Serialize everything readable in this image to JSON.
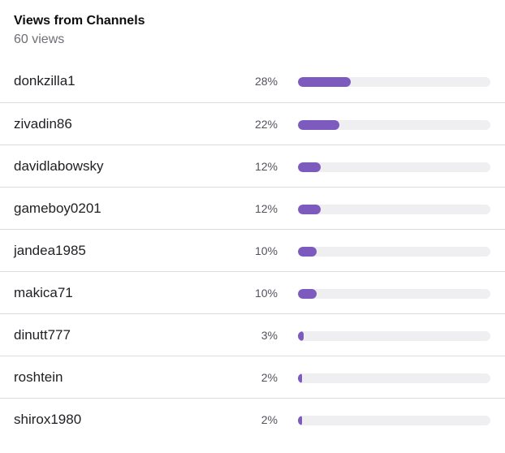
{
  "header": {
    "title": "Views from Channels",
    "subtitle": "60 views"
  },
  "accent_color": "#7d5bbe",
  "track_color": "#efeff1",
  "channels": [
    {
      "name": "donkzilla1",
      "percent_label": "28%",
      "fraction": 0.28
    },
    {
      "name": "zivadin86",
      "percent_label": "22%",
      "fraction": 0.22
    },
    {
      "name": "davidlabowsky",
      "percent_label": "12%",
      "fraction": 0.12
    },
    {
      "name": "gameboy0201",
      "percent_label": "12%",
      "fraction": 0.12
    },
    {
      "name": "jandea1985",
      "percent_label": "10%",
      "fraction": 0.1
    },
    {
      "name": "makica71",
      "percent_label": "10%",
      "fraction": 0.1
    },
    {
      "name": "dinutt777",
      "percent_label": "3%",
      "fraction": 0.03
    },
    {
      "name": "roshtein",
      "percent_label": "2%",
      "fraction": 0.02
    },
    {
      "name": "shirox1980",
      "percent_label": "2%",
      "fraction": 0.02
    }
  ]
}
